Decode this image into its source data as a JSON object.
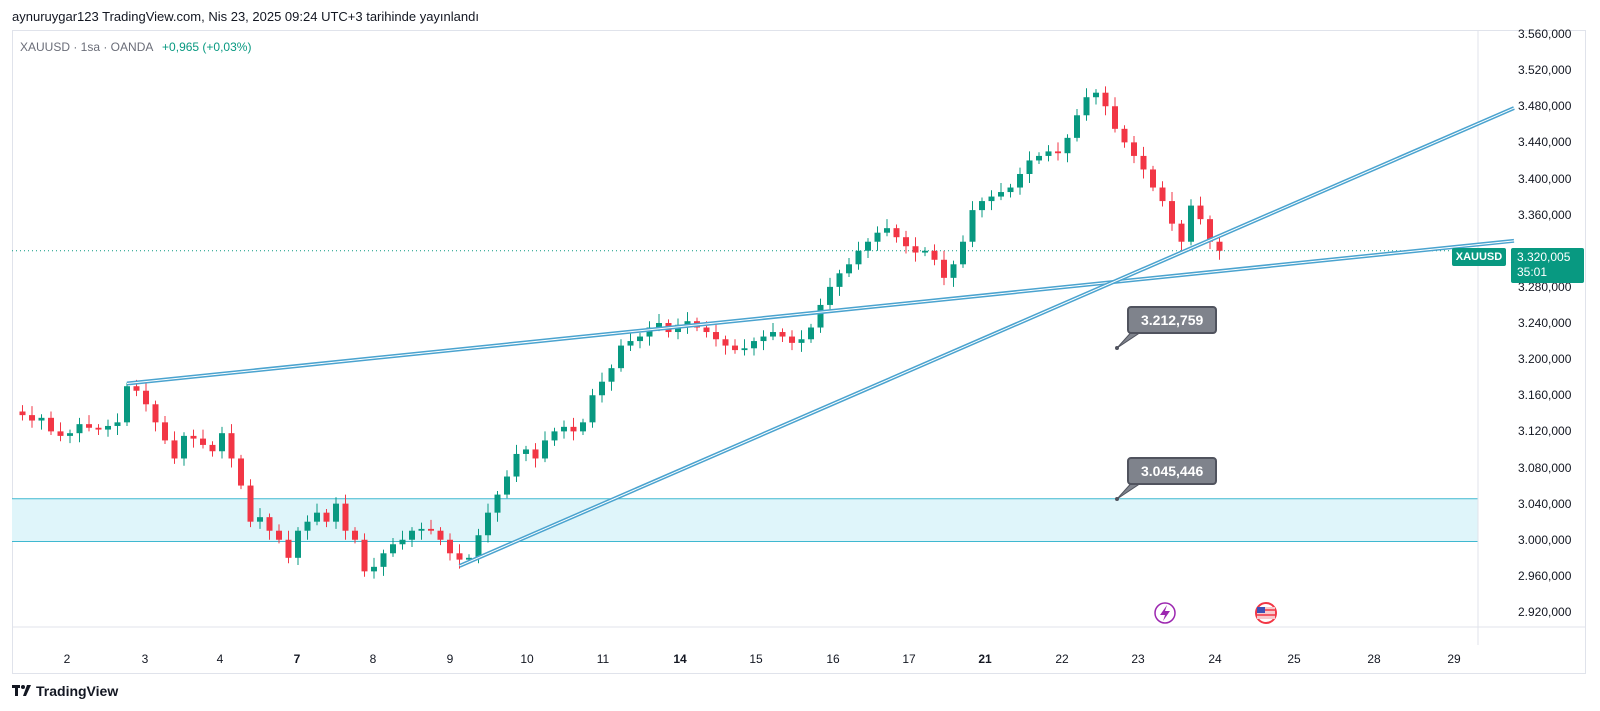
{
  "header": {
    "published_by": "aynuruygar123 TradingView.com, Nis 23, 2025 09:24 UTC+3 tarihinde yayınlandı"
  },
  "legend": {
    "symbol_line": "XAUUSD · 1sa · OANDA",
    "change": "+0,965 (+0,03%)"
  },
  "price_scale": {
    "labels": [
      "3.560,000",
      "3.520,000",
      "3.480,000",
      "3.440,000",
      "3.400,000",
      "3.360,000",
      "3.320,000",
      "3.280,000",
      "3.240,000",
      "3.200,000",
      "3.160,000",
      "3.120,000",
      "3.080,000",
      "3.040,000",
      "3.000,000",
      "2.960,000",
      "2.920,000"
    ]
  },
  "time_scale": {
    "labels": [
      "2",
      "3",
      "4",
      "7",
      "8",
      "9",
      "10",
      "11",
      "14",
      "15",
      "16",
      "17",
      "21",
      "22",
      "23",
      "24",
      "25",
      "28",
      "29"
    ],
    "bold": [
      "7",
      "14",
      "21"
    ]
  },
  "current_price": {
    "symbol": "XAUUSD",
    "price": "3.320,005",
    "countdown": "35:01",
    "value": 3320.005
  },
  "annotations": {
    "callout_upper": "3.212,759",
    "callout_lower": "3.045,446"
  },
  "zone": {
    "top": 3045.446,
    "bottom": 2998
  },
  "colors": {
    "up": "#089981",
    "down": "#f23645",
    "trendline": "#4aa3cf",
    "zone_fill": "#dff5fa",
    "zone_border": "#3fb8d0",
    "callout_bg": "#7f838c"
  },
  "footer": {
    "brand": "TradingView",
    "logo": "tradingview-logo-icon"
  },
  "icons": [
    "lightning-event-icon",
    "us-flag-event-icon"
  ],
  "chart_data": {
    "type": "candlestick",
    "symbol": "XAUUSD",
    "timeframe": "1sa",
    "ylim": [
      2900,
      3570
    ],
    "close_path": [
      [
        0,
        3142
      ],
      [
        1,
        3138
      ],
      [
        2,
        3132
      ],
      [
        3,
        3135
      ],
      [
        4,
        3120
      ],
      [
        5,
        3115
      ],
      [
        6,
        3118
      ],
      [
        7,
        3128
      ],
      [
        8,
        3124
      ],
      [
        9,
        3122
      ],
      [
        10,
        3126
      ],
      [
        11,
        3130
      ],
      [
        12,
        3170
      ],
      [
        13,
        3165
      ],
      [
        14,
        3150
      ],
      [
        15,
        3130
      ],
      [
        16,
        3110
      ],
      [
        17,
        3090
      ],
      [
        18,
        3115
      ],
      [
        19,
        3112
      ],
      [
        20,
        3105
      ],
      [
        21,
        3098
      ],
      [
        22,
        3118
      ],
      [
        23,
        3090
      ],
      [
        24,
        3060
      ],
      [
        25,
        3020
      ],
      [
        26,
        3025
      ],
      [
        27,
        3010
      ],
      [
        28,
        3000
      ],
      [
        29,
        2980
      ],
      [
        30,
        3010
      ],
      [
        31,
        3020
      ],
      [
        32,
        3030
      ],
      [
        33,
        3020
      ],
      [
        34,
        3040
      ],
      [
        35,
        3010
      ],
      [
        36,
        3000
      ],
      [
        37,
        2965
      ],
      [
        38,
        2970
      ],
      [
        39,
        2985
      ],
      [
        40,
        2995
      ],
      [
        41,
        3000
      ],
      [
        42,
        3010
      ],
      [
        43,
        3012
      ],
      [
        44,
        3010
      ],
      [
        45,
        3000
      ],
      [
        46,
        2985
      ],
      [
        47,
        2978
      ],
      [
        48,
        2980
      ],
      [
        49,
        3005
      ],
      [
        50,
        3030
      ],
      [
        51,
        3050
      ],
      [
        52,
        3070
      ],
      [
        53,
        3095
      ],
      [
        54,
        3100
      ],
      [
        55,
        3090
      ],
      [
        56,
        3110
      ],
      [
        57,
        3120
      ],
      [
        58,
        3125
      ],
      [
        59,
        3120
      ],
      [
        60,
        3130
      ],
      [
        61,
        3160
      ],
      [
        62,
        3175
      ],
      [
        63,
        3190
      ],
      [
        64,
        3215
      ],
      [
        65,
        3220
      ],
      [
        66,
        3225
      ],
      [
        67,
        3235
      ],
      [
        68,
        3240
      ],
      [
        69,
        3230
      ],
      [
        70,
        3238
      ],
      [
        71,
        3242
      ],
      [
        72,
        3235
      ],
      [
        73,
        3230
      ],
      [
        74,
        3222
      ],
      [
        75,
        3215
      ],
      [
        76,
        3210
      ],
      [
        77,
        3212
      ],
      [
        78,
        3220
      ],
      [
        79,
        3225
      ],
      [
        80,
        3230
      ],
      [
        81,
        3225
      ],
      [
        82,
        3218
      ],
      [
        83,
        3222
      ],
      [
        84,
        3235
      ],
      [
        85,
        3260
      ],
      [
        86,
        3280
      ],
      [
        87,
        3295
      ],
      [
        88,
        3305
      ],
      [
        89,
        3320
      ],
      [
        90,
        3330
      ],
      [
        91,
        3340
      ],
      [
        92,
        3345
      ],
      [
        93,
        3335
      ],
      [
        94,
        3325
      ],
      [
        95,
        3318
      ],
      [
        96,
        3320
      ],
      [
        97,
        3310
      ],
      [
        98,
        3290
      ],
      [
        99,
        3305
      ],
      [
        100,
        3330
      ],
      [
        101,
        3365
      ],
      [
        102,
        3375
      ],
      [
        103,
        3380
      ],
      [
        104,
        3385
      ],
      [
        105,
        3390
      ],
      [
        106,
        3405
      ],
      [
        107,
        3420
      ],
      [
        108,
        3425
      ],
      [
        109,
        3430
      ],
      [
        110,
        3428
      ],
      [
        111,
        3445
      ],
      [
        112,
        3470
      ],
      [
        113,
        3490
      ],
      [
        114,
        3495
      ],
      [
        115,
        3480
      ],
      [
        116,
        3455
      ],
      [
        117,
        3440
      ],
      [
        118,
        3425
      ],
      [
        119,
        3410
      ],
      [
        120,
        3390
      ],
      [
        121,
        3375
      ],
      [
        122,
        3350
      ],
      [
        123,
        3330
      ],
      [
        124,
        3370
      ],
      [
        125,
        3355
      ],
      [
        126,
        3330
      ],
      [
        127,
        3320
      ]
    ],
    "lines": [
      {
        "name": "upper-trendline",
        "points": [
          [
            12,
            3173
          ],
          [
            158,
            3331
          ]
        ]
      },
      {
        "name": "rising-trendline",
        "points": [
          [
            47,
            2971
          ],
          [
            158,
            3478
          ]
        ]
      }
    ],
    "callout_values": [
      3212.759,
      3045.446
    ]
  }
}
